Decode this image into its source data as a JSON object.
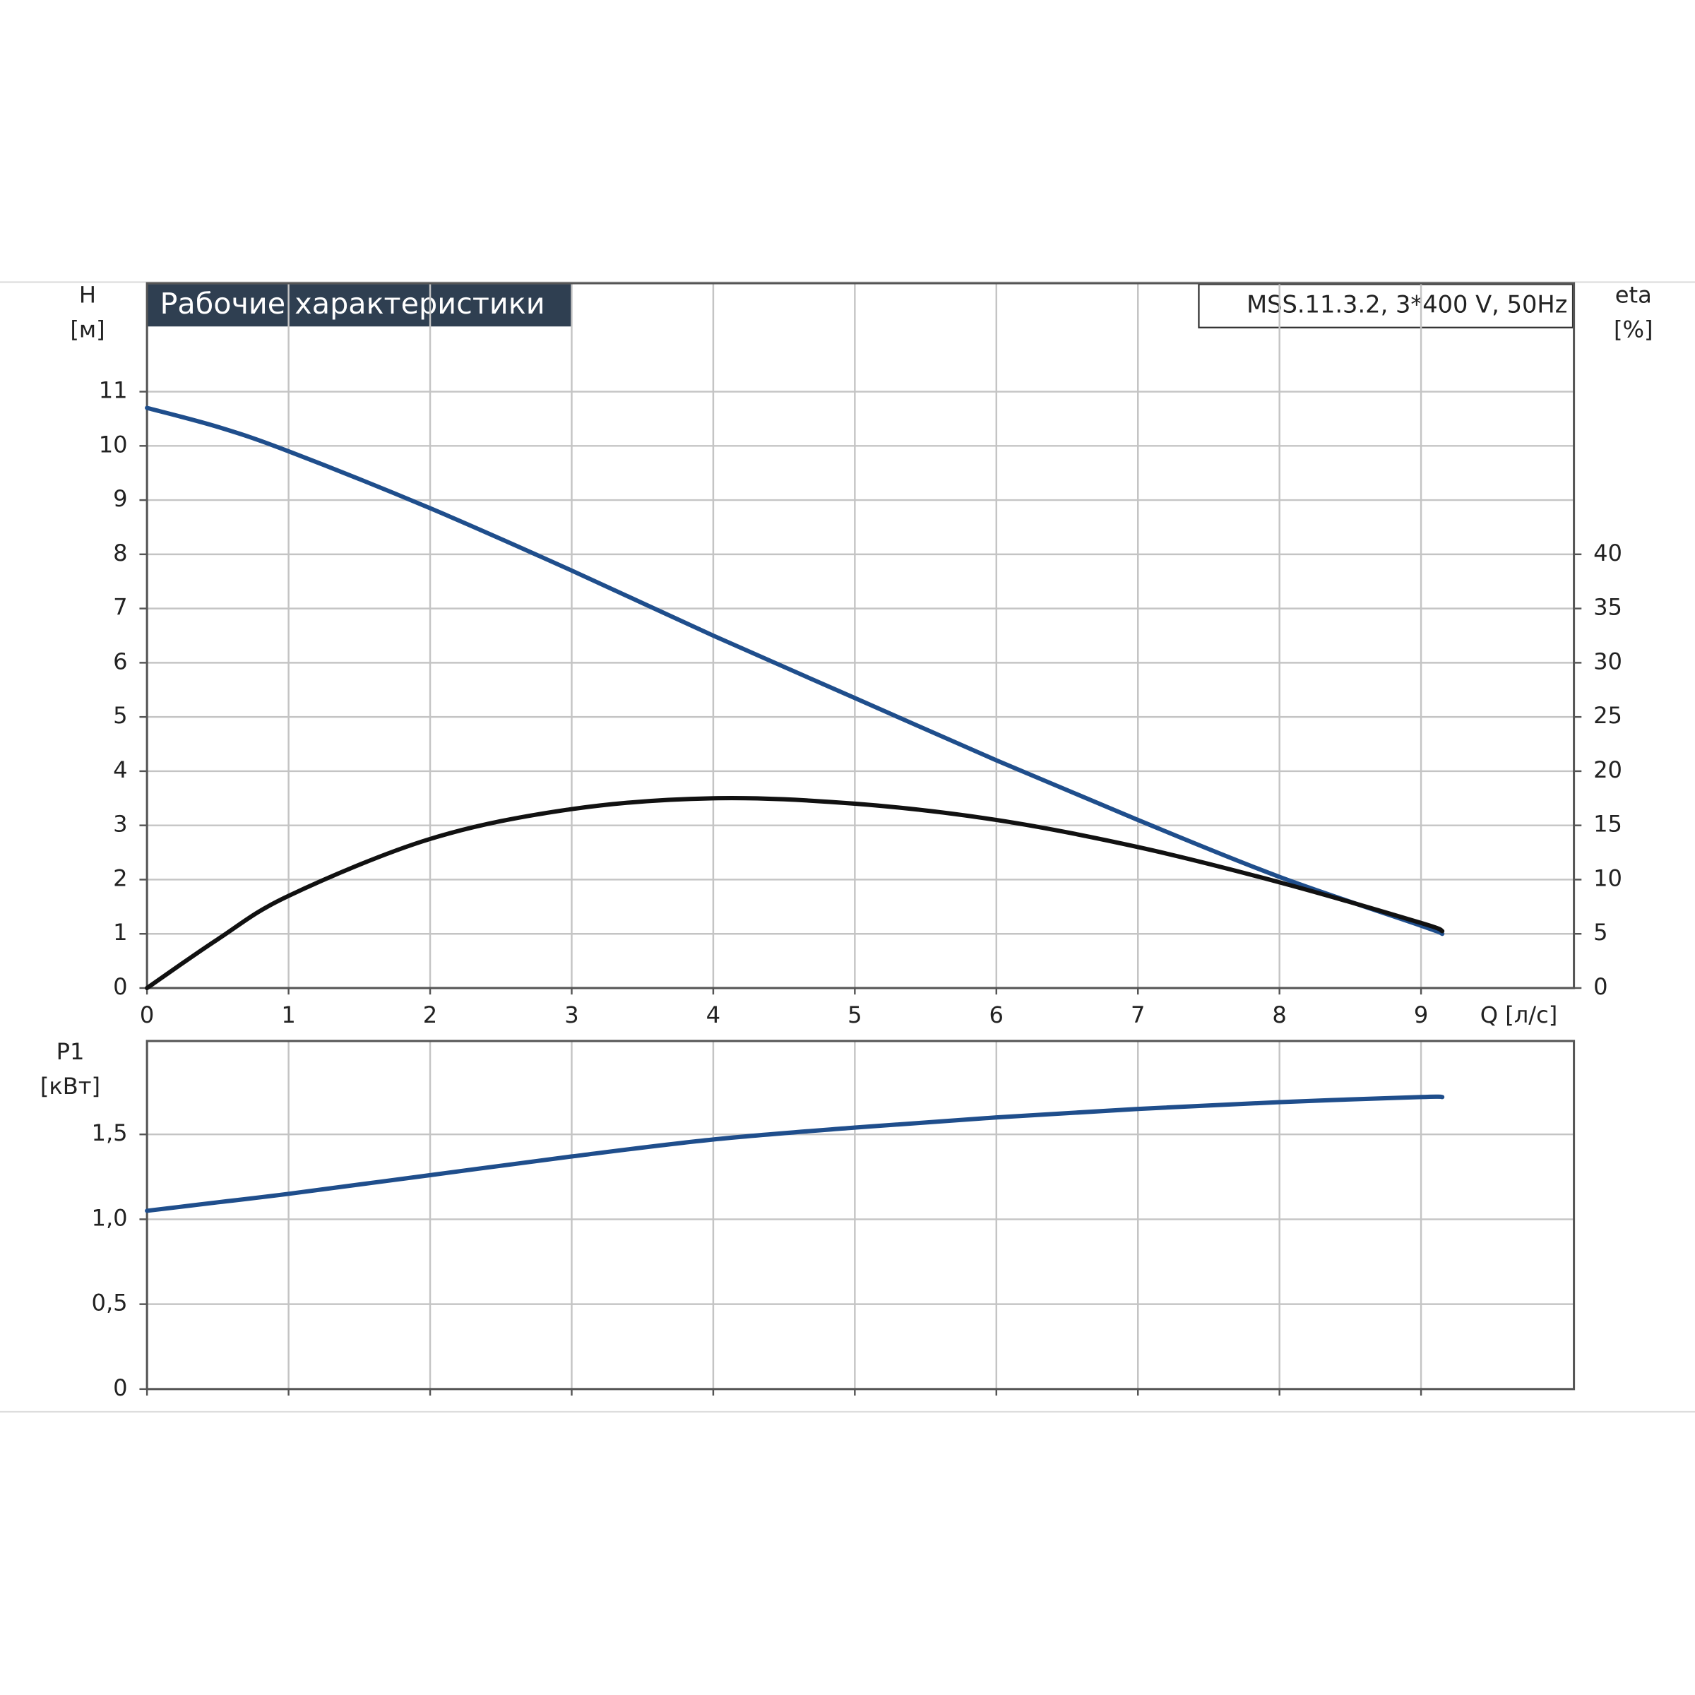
{
  "chart_data": [
    {
      "type": "line",
      "title": "Рабочие характеристики",
      "subtitle": "MSS.11.3.2, 3*400 V, 50Hz",
      "y_label": "H",
      "y_unit": "[м]",
      "y2_label": "eta",
      "y2_unit": "[%]",
      "x_label": "Q [л/с]",
      "x": [
        0,
        0.5,
        1,
        2,
        3,
        4,
        5,
        6,
        7,
        8,
        9,
        9.15
      ],
      "xlim": [
        0,
        10.08
      ],
      "xticks": [
        0,
        1,
        2,
        3,
        4,
        5,
        6,
        7,
        8,
        9
      ],
      "ylim": [
        0,
        13
      ],
      "yticks": [
        0,
        1,
        2,
        3,
        4,
        5,
        6,
        7,
        8,
        9,
        10,
        11
      ],
      "y2lim": [
        0,
        65
      ],
      "y2ticks": [
        0,
        5,
        10,
        15,
        20,
        25,
        30,
        35,
        40
      ],
      "grid": true,
      "series": [
        {
          "color": "#1f4e8c",
          "values": [
            10.7,
            10.35,
            9.9,
            8.85,
            7.7,
            6.5,
            5.35,
            4.2,
            3.1,
            2.05,
            1.15,
            1.0
          ]
        },
        {
          "color": "#111111",
          "axis": "y2",
          "values": [
            0,
            4.5,
            8.5,
            13.75,
            16.5,
            17.5,
            17,
            15.5,
            13,
            9.75,
            6,
            5.25
          ]
        }
      ]
    },
    {
      "type": "line",
      "y_label": "P1",
      "y_unit": "[кВт]",
      "x": [
        0,
        0.5,
        1,
        2,
        3,
        4,
        5,
        6,
        7,
        8,
        9,
        9.15
      ],
      "xlim": [
        0,
        10.08
      ],
      "xticks": [
        0,
        1,
        2,
        3,
        4,
        5,
        6,
        7,
        8,
        9
      ],
      "ylim": [
        0,
        2.05
      ],
      "yticks": [
        0,
        {
          "value": 0.5,
          "label": "0,5"
        },
        {
          "value": 1.0,
          "label": "1,0"
        },
        {
          "value": 1.5,
          "label": "1,5"
        }
      ],
      "grid": true,
      "series": [
        {
          "color": "#1f4e8c",
          "values": [
            1.05,
            1.1,
            1.15,
            1.26,
            1.37,
            1.47,
            1.54,
            1.6,
            1.65,
            1.69,
            1.72,
            1.72
          ]
        }
      ]
    }
  ]
}
